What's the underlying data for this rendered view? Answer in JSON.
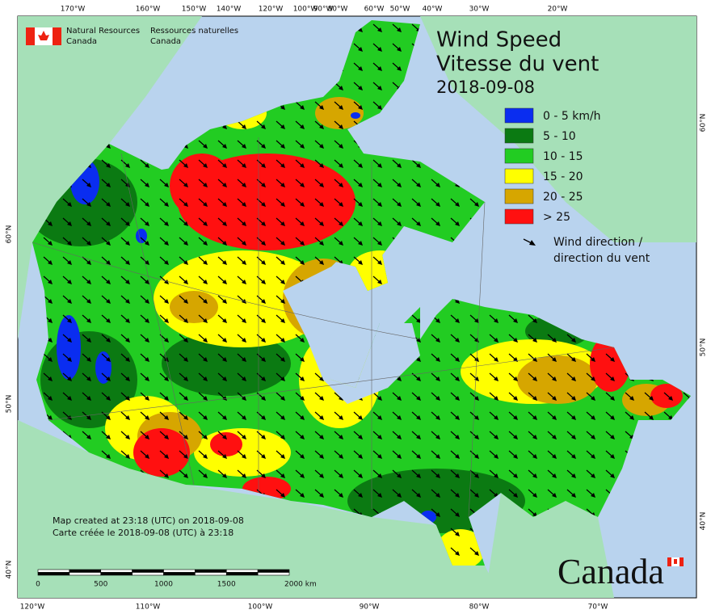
{
  "header": {
    "logo": {
      "en_line1": "Natural Resources",
      "en_line2": "Canada",
      "fr_line1": "Ressources naturelles",
      "fr_line2": "Canada"
    },
    "title_en": "Wind Speed",
    "title_fr": "Vitesse du vent",
    "date": "2018-09-08"
  },
  "legend": {
    "items": [
      {
        "label": "0 - 5 km/h",
        "color": "#0a2df0"
      },
      {
        "label": "5 - 10",
        "color": "#0b7a12"
      },
      {
        "label": "10 - 15",
        "color": "#22cc22"
      },
      {
        "label": "15 - 20",
        "color": "#ffff00"
      },
      {
        "label": "20 - 25",
        "color": "#d6a600"
      },
      {
        "label": "> 25",
        "color": "#ff1010"
      }
    ],
    "arrow_label_en": "Wind direction /",
    "arrow_label_fr": "direction du vent"
  },
  "graticule": {
    "top": [
      "170°W",
      "160°W",
      "150°W",
      "140°W",
      "120°W",
      "100°W",
      "90°W",
      "80°W",
      "60°W",
      "50°W",
      "40°W",
      "30°W",
      "20°W"
    ],
    "bottom": [
      "120°W",
      "110°W",
      "100°W",
      "90°W",
      "80°W",
      "70°W"
    ],
    "left": [
      "60°N",
      "50°N",
      "40°N"
    ],
    "right": [
      "60°N",
      "50°N",
      "40°N"
    ]
  },
  "notes": [
    "Map created at 23:18 (UTC) on 2018-09-08",
    "Carte créée le 2018-09-08 (UTC) à 23:18"
  ],
  "scale_bar": {
    "labels": [
      "0",
      "500",
      "1000",
      "1500",
      "2000 km"
    ]
  },
  "wordmark": "Canada"
}
